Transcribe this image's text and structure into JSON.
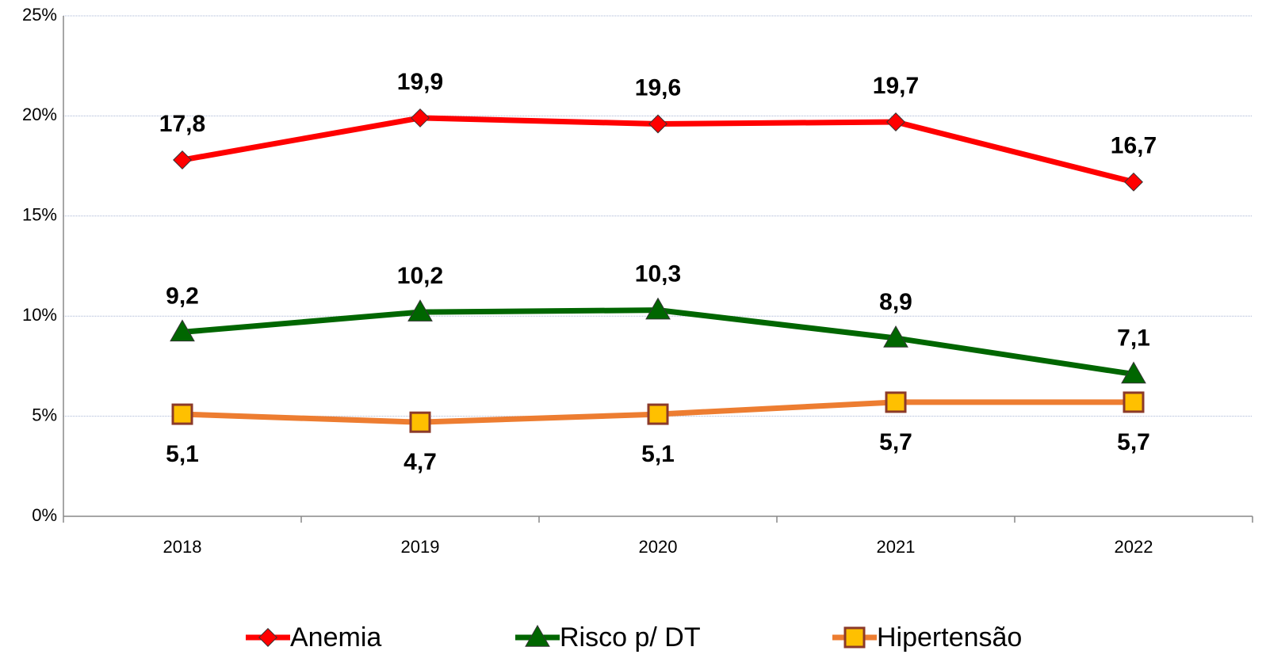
{
  "chart_data": {
    "type": "line",
    "categories": [
      "2018",
      "2019",
      "2020",
      "2021",
      "2022"
    ],
    "series": [
      {
        "name": "Anemia",
        "color": "#ff0000",
        "marker": "diamond",
        "label_position": "above",
        "values": [
          17.8,
          19.9,
          19.6,
          19.7,
          16.7
        ],
        "value_labels": [
          "17,8",
          "19,9",
          "19,6",
          "19,7",
          "16,7"
        ]
      },
      {
        "name": "Risco p/ DT",
        "color": "#006600",
        "marker": "triangle",
        "label_position": "above",
        "values": [
          9.2,
          10.2,
          10.3,
          8.9,
          7.1
        ],
        "value_labels": [
          "9,2",
          "10,2",
          "10,3",
          "8,9",
          "7,1"
        ]
      },
      {
        "name": "Hipertensão",
        "color": "#ed7d31",
        "marker": "square",
        "label_position": "below",
        "values": [
          5.1,
          4.7,
          5.1,
          5.7,
          5.7
        ],
        "value_labels": [
          "5,1",
          "4,7",
          "5,1",
          "5,7",
          "5,7"
        ]
      }
    ],
    "ylim": [
      0,
      25
    ],
    "yticks": [
      {
        "value": 0,
        "label": "0%"
      },
      {
        "value": 5,
        "label": "5%"
      },
      {
        "value": 10,
        "label": "10%"
      },
      {
        "value": 15,
        "label": "15%"
      },
      {
        "value": 20,
        "label": "20%"
      },
      {
        "value": 25,
        "label": "25%"
      }
    ],
    "grid": true,
    "legend": "bottom"
  }
}
